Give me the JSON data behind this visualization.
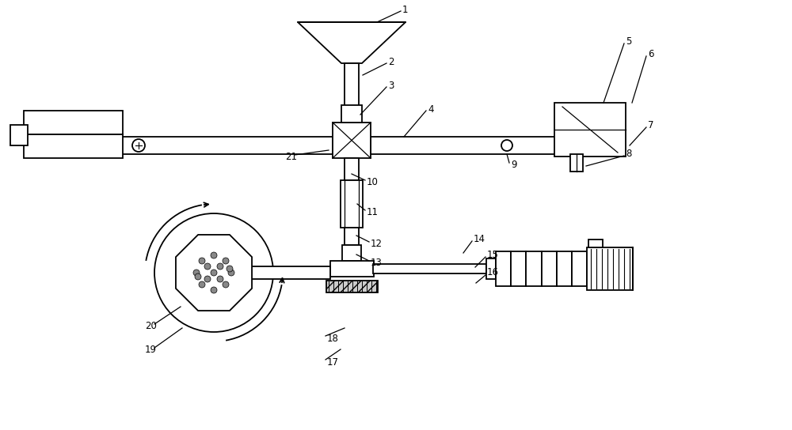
{
  "bg_color": "#ffffff",
  "line_color": "#000000",
  "fig_width": 10.0,
  "fig_height": 5.44,
  "dpi": 100
}
